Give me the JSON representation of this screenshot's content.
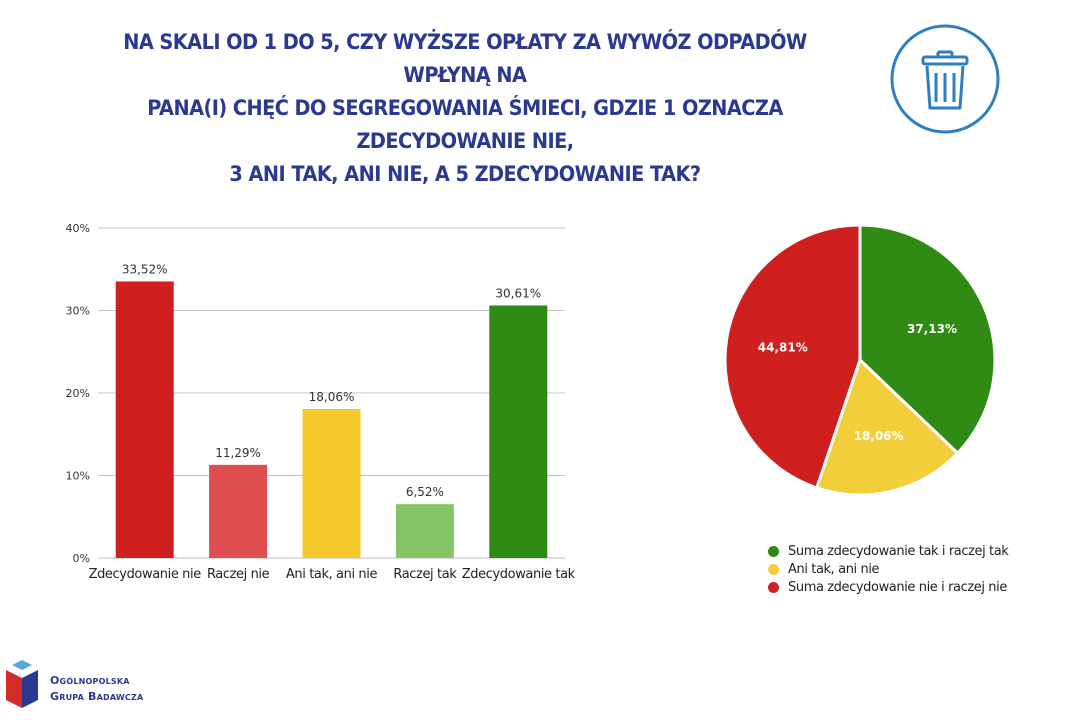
{
  "title_lines": [
    "NA SKALI OD 1 DO 5, CZY WYŻSZE OPŁATY ZA WYWÓZ ODPADÓW WPŁYNĄ NA",
    "PANA(I) CHĘĆ DO SEGREGOWANIA ŚMIECI, GDZIE 1 OZNACZA ZDECYDOWANIE NIE,",
    "3 ANI TAK, ANI NIE, A 5 ZDECYDOWANIE TAK?"
  ],
  "icons": {
    "header": "trash-bin-icon",
    "logo": "organization-logo-icon"
  },
  "logo": {
    "line1": "Ogólnopolska",
    "line2": "Grupa Badawcza"
  },
  "colors": {
    "title": "#2b3990",
    "icon_ring": "#2f7ec0"
  },
  "chart_data": [
    {
      "type": "bar",
      "categories": [
        "Zdecydowanie nie",
        "Raczej nie",
        "Ani tak, ani nie",
        "Raczej tak",
        "Zdecydowanie tak"
      ],
      "values": [
        33.52,
        11.29,
        18.06,
        6.52,
        30.61
      ],
      "value_labels": [
        "33,52%",
        "11,29%",
        "18,06%",
        "6,52%",
        "30,61%"
      ],
      "colors": [
        "#cf1f1f",
        "#df4f50",
        "#f5ca2a",
        "#85c466",
        "#2f8b13"
      ],
      "ylim": [
        0,
        40
      ],
      "yticks": [
        0,
        10,
        20,
        30,
        40
      ],
      "ytick_labels": [
        "0%",
        "10%",
        "20%",
        "30%",
        "40%"
      ],
      "grid": true
    },
    {
      "type": "pie",
      "labels": [
        "Suma zdecydowanie tak i raczej tak",
        "Ani tak, ani nie",
        "Suma zdecydowanie nie i raczej nie"
      ],
      "values": [
        37.13,
        18.06,
        44.81
      ],
      "value_labels": [
        "37,13%",
        "18,06%",
        "44,81%"
      ],
      "colors": [
        "#2f8b13",
        "#f2cf3a",
        "#cf1f1f"
      ],
      "legend_position": "bottom"
    }
  ]
}
